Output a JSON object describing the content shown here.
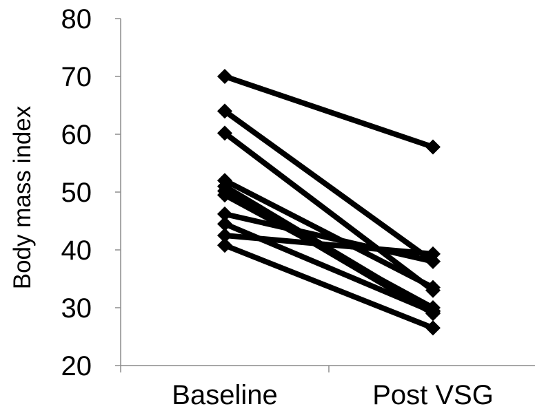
{
  "chart_data": {
    "type": "line",
    "title": "",
    "xlabel": "",
    "ylabel": "Body mass index",
    "categories": [
      "Baseline",
      "Post VSG"
    ],
    "ylim": [
      20,
      80
    ],
    "yticks": [
      20,
      30,
      40,
      50,
      60,
      70,
      80
    ],
    "grid": false,
    "legend": "none",
    "marker": "diamond",
    "color": "#000000",
    "series": [
      {
        "values": [
          70.0,
          57.8
        ]
      },
      {
        "values": [
          64.0,
          38.0
        ]
      },
      {
        "values": [
          60.2,
          33.0
        ]
      },
      {
        "values": [
          52.0,
          33.5
        ]
      },
      {
        "values": [
          51.0,
          29.5
        ]
      },
      {
        "values": [
          50.2,
          29.0
        ]
      },
      {
        "values": [
          49.5,
          30.0
        ]
      },
      {
        "values": [
          46.2,
          38.0
        ]
      },
      {
        "values": [
          44.5,
          29.3
        ]
      },
      {
        "values": [
          42.5,
          39.3
        ]
      },
      {
        "values": [
          40.8,
          26.5
        ]
      }
    ]
  }
}
